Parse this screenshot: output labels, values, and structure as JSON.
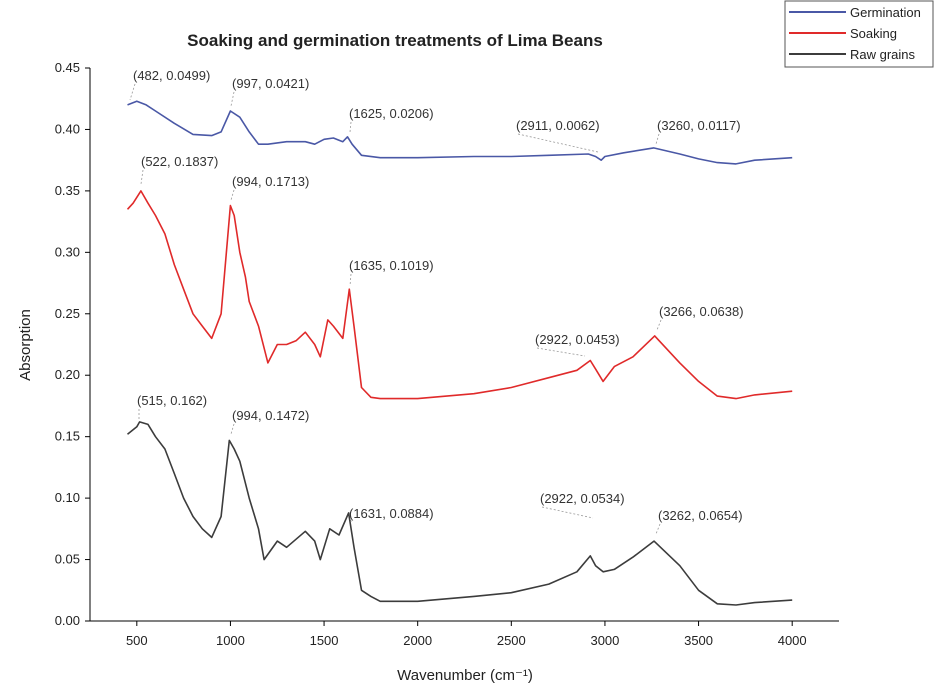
{
  "chart_data": {
    "type": "line",
    "title": "Soaking and germination  treatments of Lima Beans",
    "x_label": "Wavenumber (cm⁻¹)",
    "y_label": "Absorption",
    "xlim": [
      250,
      4250
    ],
    "xticks": [
      500,
      1000,
      1500,
      2000,
      2500,
      3000,
      3500,
      4000
    ],
    "ylim": [
      0,
      0.45
    ],
    "yticks": [
      {
        "value": 0,
        "label": "0.00"
      },
      {
        "value": 0.05,
        "label": "0.05"
      },
      {
        "value": 0.1,
        "label": "0.10"
      },
      {
        "value": 0.15,
        "label": "0.15"
      },
      {
        "value": 0.2,
        "label": "0.20"
      },
      {
        "value": 0.25,
        "label": "0.25"
      },
      {
        "value": 0.3,
        "label": "0.30"
      },
      {
        "value": 0.35,
        "label": "0.35"
      },
      {
        "value": 0.4,
        "label": "0.40"
      },
      {
        "value": 0.45,
        "label": "0.45"
      }
    ],
    "legend": "top-right",
    "series": [
      {
        "name": "Germination",
        "color": "#4a58a6",
        "x": [
          450,
          500,
          550,
          600,
          700,
          800,
          900,
          950,
          1000,
          1050,
          1100,
          1150,
          1200,
          1300,
          1400,
          1450,
          1500,
          1550,
          1600,
          1625,
          1650,
          1700,
          1800,
          2000,
          2300,
          2500,
          2700,
          2911,
          2950,
          2980,
          3000,
          3100,
          3260,
          3400,
          3500,
          3600,
          3700,
          3800,
          4000
        ],
        "values": [
          0.42,
          0.423,
          0.42,
          0.415,
          0.405,
          0.396,
          0.395,
          0.398,
          0.415,
          0.41,
          0.398,
          0.388,
          0.388,
          0.39,
          0.39,
          0.388,
          0.392,
          0.393,
          0.39,
          0.394,
          0.388,
          0.379,
          0.377,
          0.377,
          0.378,
          0.378,
          0.379,
          0.38,
          0.378,
          0.375,
          0.378,
          0.381,
          0.385,
          0.38,
          0.376,
          0.373,
          0.372,
          0.375,
          0.377
        ]
      },
      {
        "name": "Soaking",
        "color": "#e02a2a",
        "x": [
          450,
          480,
          522,
          560,
          600,
          650,
          700,
          750,
          800,
          850,
          900,
          950,
          1000,
          1020,
          1050,
          1080,
          1100,
          1150,
          1200,
          1250,
          1300,
          1350,
          1400,
          1450,
          1480,
          1520,
          1550,
          1600,
          1635,
          1660,
          1700,
          1750,
          1800,
          2000,
          2300,
          2500,
          2700,
          2850,
          2922,
          2950,
          2990,
          3050,
          3150,
          3266,
          3400,
          3500,
          3600,
          3700,
          3800,
          4000
        ],
        "values": [
          0.335,
          0.34,
          0.35,
          0.34,
          0.33,
          0.315,
          0.29,
          0.27,
          0.25,
          0.24,
          0.23,
          0.25,
          0.338,
          0.33,
          0.3,
          0.28,
          0.26,
          0.24,
          0.21,
          0.225,
          0.225,
          0.228,
          0.235,
          0.225,
          0.215,
          0.245,
          0.24,
          0.23,
          0.27,
          0.24,
          0.19,
          0.182,
          0.181,
          0.181,
          0.185,
          0.19,
          0.198,
          0.204,
          0.212,
          0.205,
          0.195,
          0.207,
          0.215,
          0.232,
          0.21,
          0.195,
          0.183,
          0.181,
          0.184,
          0.187
        ]
      },
      {
        "name": "Raw  grains",
        "color": "#3c3c3c",
        "x": [
          450,
          500,
          515,
          560,
          600,
          650,
          700,
          750,
          800,
          850,
          900,
          950,
          994,
          1020,
          1050,
          1100,
          1150,
          1180,
          1250,
          1300,
          1400,
          1450,
          1480,
          1530,
          1580,
          1631,
          1660,
          1700,
          1750,
          1800,
          2000,
          2300,
          2500,
          2700,
          2850,
          2922,
          2950,
          2990,
          3050,
          3150,
          3262,
          3400,
          3500,
          3600,
          3700,
          3800,
          4000
        ],
        "values": [
          0.152,
          0.158,
          0.162,
          0.16,
          0.15,
          0.14,
          0.12,
          0.1,
          0.085,
          0.075,
          0.068,
          0.085,
          0.147,
          0.14,
          0.13,
          0.1,
          0.075,
          0.05,
          0.065,
          0.06,
          0.073,
          0.065,
          0.05,
          0.075,
          0.07,
          0.088,
          0.06,
          0.025,
          0.02,
          0.016,
          0.016,
          0.02,
          0.023,
          0.03,
          0.04,
          0.053,
          0.045,
          0.04,
          0.042,
          0.052,
          0.065,
          0.045,
          0.025,
          0.014,
          0.013,
          0.015,
          0.017
        ]
      }
    ],
    "annotations": [
      "(482, 0.0499)",
      "(997, 0.0421)",
      "(1625, 0.0206)",
      "(2911, 0.0062)",
      "(3260, 0.0117)",
      "(522, 0.1837)",
      "(994, 0.1713)",
      "(1635, 0.1019)",
      "(2922, 0.0453)",
      "(3266, 0.0638)",
      "(515, 0.162)",
      "(994, 0.1472)",
      "(1631, 0.0884)",
      "(2922, 0.0534)",
      "(3262, 0.0654)"
    ]
  }
}
